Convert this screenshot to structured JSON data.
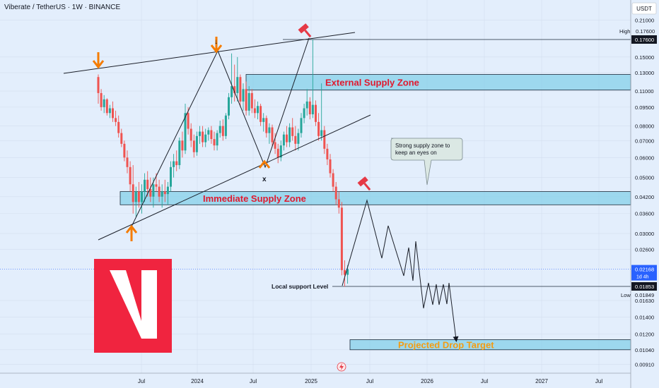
{
  "header": {
    "symbol": "Viberate / TetherUS · 1W · BINANCE"
  },
  "currency_label": "USDT",
  "logo_letter": "V",
  "colors": {
    "background": "#e3eefc",
    "up_candle": "#26a69a",
    "down_candle": "#ef5350",
    "zone_fill": "#86d0ea",
    "zone_border": "#1b2a3a",
    "zone_label_red": "#e1192e",
    "zone_label_orange": "#f39c12",
    "arrow_orange": "#f57c00",
    "hammer_red": "#e53946",
    "logo_red": "#f0243f",
    "price_tag_blue": "#2962ff",
    "price_tag_dark": "#131722"
  },
  "chart_data": {
    "type": "candlestick",
    "x_axis_labels": [
      "Jul",
      "2024",
      "Jul",
      "2025",
      "Jul",
      "2026",
      "Jul",
      "2027",
      "Jul"
    ],
    "y_axis": {
      "scale": "log",
      "ticks": [
        "0.21000",
        "0.15000",
        "0.13000",
        "0.11000",
        "0.09500",
        "0.08000",
        "0.07000",
        "0.06000",
        "0.05000",
        "0.04200",
        "0.03600",
        "0.03000",
        "0.02600",
        "0.01630",
        "0.01400",
        "0.01200",
        "0.01040",
        "0.00910"
      ]
    },
    "price_tags": {
      "high_label": "High",
      "high_value": "0.17600",
      "current_value": "0.02168",
      "current_countdown": "1d 4h",
      "support_value": "0.01853",
      "low_label": "Low",
      "low_value": "0.01849"
    },
    "zones": [
      {
        "name": "External Supply Zone",
        "price_low": 0.111,
        "price_high": 0.128
      },
      {
        "name": "Immediate Supply Zone",
        "price_low": 0.039,
        "price_high": 0.044
      },
      {
        "name": "Projected Drop Target",
        "price_low": 0.0104,
        "price_high": 0.0114
      }
    ],
    "levels": [
      {
        "name": "Local support Level",
        "price": 0.01853
      }
    ],
    "callout": "Strong supply zone to keep an eyes on",
    "annotations": [
      "x"
    ],
    "price_path": [
      {
        "t": 0,
        "o": 0.125,
        "h": 0.128,
        "l": 0.098,
        "c": 0.108
      },
      {
        "t": 1,
        "o": 0.108,
        "h": 0.112,
        "l": 0.092,
        "c": 0.095
      },
      {
        "t": 2,
        "o": 0.095,
        "h": 0.106,
        "l": 0.09,
        "c": 0.102
      },
      {
        "t": 3,
        "o": 0.102,
        "h": 0.103,
        "l": 0.088,
        "c": 0.09
      },
      {
        "t": 4,
        "o": 0.09,
        "h": 0.097,
        "l": 0.086,
        "c": 0.094
      },
      {
        "t": 5,
        "o": 0.094,
        "h": 0.1,
        "l": 0.083,
        "c": 0.086
      },
      {
        "t": 6,
        "o": 0.086,
        "h": 0.092,
        "l": 0.08,
        "c": 0.083
      },
      {
        "t": 7,
        "o": 0.083,
        "h": 0.088,
        "l": 0.072,
        "c": 0.075
      },
      {
        "t": 8,
        "o": 0.075,
        "h": 0.078,
        "l": 0.066,
        "c": 0.068
      },
      {
        "t": 9,
        "o": 0.068,
        "h": 0.07,
        "l": 0.058,
        "c": 0.06
      },
      {
        "t": 10,
        "o": 0.06,
        "h": 0.064,
        "l": 0.052,
        "c": 0.055
      },
      {
        "t": 11,
        "o": 0.055,
        "h": 0.058,
        "l": 0.044,
        "c": 0.047
      },
      {
        "t": 12,
        "o": 0.047,
        "h": 0.056,
        "l": 0.036,
        "c": 0.04
      },
      {
        "t": 13,
        "o": 0.04,
        "h": 0.046,
        "l": 0.035,
        "c": 0.044
      },
      {
        "t": 14,
        "o": 0.044,
        "h": 0.048,
        "l": 0.038,
        "c": 0.04
      },
      {
        "t": 15,
        "o": 0.04,
        "h": 0.047,
        "l": 0.036,
        "c": 0.044
      },
      {
        "t": 16,
        "o": 0.044,
        "h": 0.052,
        "l": 0.04,
        "c": 0.049
      },
      {
        "t": 17,
        "o": 0.049,
        "h": 0.053,
        "l": 0.042,
        "c": 0.045
      },
      {
        "t": 18,
        "o": 0.045,
        "h": 0.05,
        "l": 0.04,
        "c": 0.042
      },
      {
        "t": 19,
        "o": 0.042,
        "h": 0.05,
        "l": 0.038,
        "c": 0.047
      },
      {
        "t": 20,
        "o": 0.047,
        "h": 0.052,
        "l": 0.044,
        "c": 0.046
      },
      {
        "t": 21,
        "o": 0.046,
        "h": 0.049,
        "l": 0.04,
        "c": 0.042
      },
      {
        "t": 22,
        "o": 0.042,
        "h": 0.047,
        "l": 0.038,
        "c": 0.044
      },
      {
        "t": 23,
        "o": 0.044,
        "h": 0.049,
        "l": 0.04,
        "c": 0.043
      },
      {
        "t": 24,
        "o": 0.043,
        "h": 0.048,
        "l": 0.039,
        "c": 0.046
      },
      {
        "t": 25,
        "o": 0.046,
        "h": 0.058,
        "l": 0.044,
        "c": 0.055
      },
      {
        "t": 26,
        "o": 0.055,
        "h": 0.062,
        "l": 0.05,
        "c": 0.058
      },
      {
        "t": 27,
        "o": 0.058,
        "h": 0.064,
        "l": 0.053,
        "c": 0.056
      },
      {
        "t": 28,
        "o": 0.056,
        "h": 0.072,
        "l": 0.054,
        "c": 0.07
      },
      {
        "t": 29,
        "o": 0.07,
        "h": 0.076,
        "l": 0.06,
        "c": 0.064
      },
      {
        "t": 30,
        "o": 0.064,
        "h": 0.098,
        "l": 0.062,
        "c": 0.09
      },
      {
        "t": 31,
        "o": 0.09,
        "h": 0.095,
        "l": 0.074,
        "c": 0.078
      },
      {
        "t": 32,
        "o": 0.078,
        "h": 0.082,
        "l": 0.066,
        "c": 0.07
      },
      {
        "t": 33,
        "o": 0.07,
        "h": 0.074,
        "l": 0.06,
        "c": 0.063
      },
      {
        "t": 34,
        "o": 0.063,
        "h": 0.076,
        "l": 0.061,
        "c": 0.073
      },
      {
        "t": 35,
        "o": 0.073,
        "h": 0.08,
        "l": 0.068,
        "c": 0.076
      },
      {
        "t": 36,
        "o": 0.076,
        "h": 0.08,
        "l": 0.066,
        "c": 0.069
      },
      {
        "t": 37,
        "o": 0.069,
        "h": 0.078,
        "l": 0.066,
        "c": 0.074
      },
      {
        "t": 38,
        "o": 0.074,
        "h": 0.079,
        "l": 0.07,
        "c": 0.077
      },
      {
        "t": 39,
        "o": 0.077,
        "h": 0.08,
        "l": 0.068,
        "c": 0.071
      },
      {
        "t": 40,
        "o": 0.071,
        "h": 0.076,
        "l": 0.064,
        "c": 0.067
      },
      {
        "t": 41,
        "o": 0.067,
        "h": 0.077,
        "l": 0.064,
        "c": 0.075
      },
      {
        "t": 42,
        "o": 0.075,
        "h": 0.084,
        "l": 0.072,
        "c": 0.08
      },
      {
        "t": 43,
        "o": 0.08,
        "h": 0.085,
        "l": 0.07,
        "c": 0.073
      },
      {
        "t": 44,
        "o": 0.073,
        "h": 0.09,
        "l": 0.071,
        "c": 0.088
      },
      {
        "t": 45,
        "o": 0.088,
        "h": 0.108,
        "l": 0.085,
        "c": 0.104
      },
      {
        "t": 46,
        "o": 0.104,
        "h": 0.155,
        "l": 0.098,
        "c": 0.115
      },
      {
        "t": 47,
        "o": 0.115,
        "h": 0.14,
        "l": 0.1,
        "c": 0.108
      },
      {
        "t": 48,
        "o": 0.108,
        "h": 0.15,
        "l": 0.1,
        "c": 0.125
      },
      {
        "t": 49,
        "o": 0.125,
        "h": 0.128,
        "l": 0.095,
        "c": 0.1
      },
      {
        "t": 50,
        "o": 0.1,
        "h": 0.118,
        "l": 0.092,
        "c": 0.112
      },
      {
        "t": 51,
        "o": 0.112,
        "h": 0.12,
        "l": 0.088,
        "c": 0.092
      },
      {
        "t": 52,
        "o": 0.092,
        "h": 0.115,
        "l": 0.088,
        "c": 0.108
      },
      {
        "t": 53,
        "o": 0.108,
        "h": 0.112,
        "l": 0.09,
        "c": 0.094
      },
      {
        "t": 54,
        "o": 0.094,
        "h": 0.102,
        "l": 0.086,
        "c": 0.09
      },
      {
        "t": 55,
        "o": 0.09,
        "h": 0.1,
        "l": 0.085,
        "c": 0.096
      },
      {
        "t": 56,
        "o": 0.096,
        "h": 0.098,
        "l": 0.08,
        "c": 0.083
      },
      {
        "t": 57,
        "o": 0.083,
        "h": 0.09,
        "l": 0.076,
        "c": 0.086
      },
      {
        "t": 58,
        "o": 0.086,
        "h": 0.088,
        "l": 0.072,
        "c": 0.075
      },
      {
        "t": 59,
        "o": 0.075,
        "h": 0.082,
        "l": 0.068,
        "c": 0.079
      },
      {
        "t": 60,
        "o": 0.079,
        "h": 0.081,
        "l": 0.066,
        "c": 0.069
      },
      {
        "t": 61,
        "o": 0.069,
        "h": 0.075,
        "l": 0.062,
        "c": 0.065
      },
      {
        "t": 62,
        "o": 0.065,
        "h": 0.068,
        "l": 0.057,
        "c": 0.06
      },
      {
        "t": 63,
        "o": 0.06,
        "h": 0.07,
        "l": 0.058,
        "c": 0.067
      },
      {
        "t": 64,
        "o": 0.067,
        "h": 0.076,
        "l": 0.064,
        "c": 0.074
      },
      {
        "t": 65,
        "o": 0.074,
        "h": 0.08,
        "l": 0.066,
        "c": 0.069
      },
      {
        "t": 66,
        "o": 0.069,
        "h": 0.082,
        "l": 0.066,
        "c": 0.079
      },
      {
        "t": 67,
        "o": 0.079,
        "h": 0.086,
        "l": 0.07,
        "c": 0.073
      },
      {
        "t": 68,
        "o": 0.073,
        "h": 0.08,
        "l": 0.064,
        "c": 0.068
      },
      {
        "t": 69,
        "o": 0.068,
        "h": 0.078,
        "l": 0.064,
        "c": 0.075
      },
      {
        "t": 70,
        "o": 0.075,
        "h": 0.09,
        "l": 0.072,
        "c": 0.086
      },
      {
        "t": 71,
        "o": 0.086,
        "h": 0.098,
        "l": 0.082,
        "c": 0.094
      },
      {
        "t": 72,
        "o": 0.094,
        "h": 0.112,
        "l": 0.088,
        "c": 0.1
      },
      {
        "t": 73,
        "o": 0.1,
        "h": 0.104,
        "l": 0.085,
        "c": 0.089
      },
      {
        "t": 74,
        "o": 0.089,
        "h": 0.176,
        "l": 0.086,
        "c": 0.097
      },
      {
        "t": 75,
        "o": 0.097,
        "h": 0.101,
        "l": 0.08,
        "c": 0.083
      },
      {
        "t": 76,
        "o": 0.083,
        "h": 0.09,
        "l": 0.07,
        "c": 0.073
      },
      {
        "t": 77,
        "o": 0.073,
        "h": 0.118,
        "l": 0.07,
        "c": 0.077
      },
      {
        "t": 78,
        "o": 0.077,
        "h": 0.08,
        "l": 0.062,
        "c": 0.065
      },
      {
        "t": 79,
        "o": 0.065,
        "h": 0.068,
        "l": 0.056,
        "c": 0.059
      },
      {
        "t": 80,
        "o": 0.059,
        "h": 0.062,
        "l": 0.05,
        "c": 0.052
      },
      {
        "t": 81,
        "o": 0.052,
        "h": 0.054,
        "l": 0.044,
        "c": 0.046
      },
      {
        "t": 82,
        "o": 0.046,
        "h": 0.048,
        "l": 0.039,
        "c": 0.041
      },
      {
        "t": 83,
        "o": 0.041,
        "h": 0.044,
        "l": 0.036,
        "c": 0.038
      },
      {
        "t": 84,
        "o": 0.038,
        "h": 0.04,
        "l": 0.0205,
        "c": 0.0215
      },
      {
        "t": 85,
        "o": 0.0215,
        "h": 0.0235,
        "l": 0.0185,
        "c": 0.0206
      },
      {
        "t": 86,
        "o": 0.0206,
        "h": 0.0225,
        "l": 0.019,
        "c": 0.02168
      }
    ]
  }
}
